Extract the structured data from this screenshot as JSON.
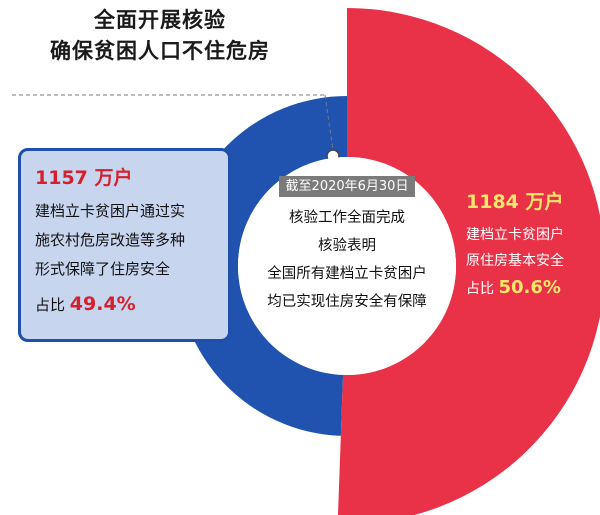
{
  "title": {
    "line1": "全面开展核验",
    "line2": "确保贫困人口不住危房"
  },
  "center": {
    "date_label": "截至2020年6月30日",
    "lines": [
      "核验工作全面完成",
      "核验表明",
      "全国所有建档立卡贫困户",
      "均已实现住房安全有保障"
    ]
  },
  "left_box": {
    "count": "1157 万户",
    "lines": [
      "建档立卡贫困户通过实",
      "施农村危房改造等多种",
      "形式保障了住房安全"
    ],
    "share_label": "占比",
    "share_pct": "49.4%"
  },
  "right_text": {
    "count": "1184 万户",
    "lines": [
      "建档立卡贫困户",
      "原住房基本安全"
    ],
    "share_label": "占比",
    "share_pct": "50.6%"
  },
  "chart_data": {
    "type": "pie",
    "style": "donut",
    "categories": [
      "建档立卡贫困户通过实施农村危房改造等多种形式保障了住房安全",
      "建档立卡贫困户原住房基本安全"
    ],
    "values": [
      1157,
      1184
    ],
    "unit": "万户",
    "percentages": [
      49.4,
      50.6
    ],
    "colors": [
      "#2052b0",
      "#e93148"
    ]
  }
}
